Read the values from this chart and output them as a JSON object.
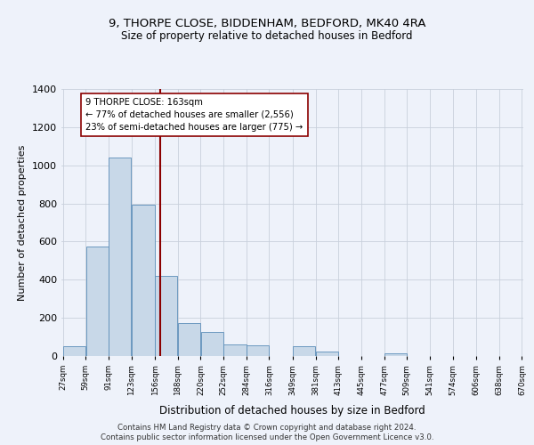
{
  "title1": "9, THORPE CLOSE, BIDDENHAM, BEDFORD, MK40 4RA",
  "title2": "Size of property relative to detached houses in Bedford",
  "xlabel": "Distribution of detached houses by size in Bedford",
  "ylabel": "Number of detached properties",
  "bar_left_edges": [
    27,
    59,
    91,
    123,
    156,
    188,
    220,
    252,
    284,
    316,
    349,
    381,
    413,
    445,
    477,
    509,
    541,
    574,
    606,
    638
  ],
  "bar_widths": [
    32,
    32,
    32,
    33,
    32,
    32,
    32,
    32,
    32,
    33,
    32,
    32,
    32,
    32,
    32,
    32,
    33,
    32,
    32,
    32
  ],
  "bar_heights": [
    50,
    575,
    1040,
    795,
    420,
    175,
    125,
    62,
    55,
    0,
    50,
    25,
    0,
    0,
    15,
    0,
    0,
    0,
    0,
    0
  ],
  "bar_color": "#c8d8e8",
  "bar_edge_color": "#5b8db8",
  "tick_labels": [
    "27sqm",
    "59sqm",
    "91sqm",
    "123sqm",
    "156sqm",
    "188sqm",
    "220sqm",
    "252sqm",
    "284sqm",
    "316sqm",
    "349sqm",
    "381sqm",
    "413sqm",
    "445sqm",
    "477sqm",
    "509sqm",
    "541sqm",
    "574sqm",
    "606sqm",
    "638sqm",
    "670sqm"
  ],
  "ylim": [
    0,
    1400
  ],
  "yticks": [
    0,
    200,
    400,
    600,
    800,
    1000,
    1200,
    1400
  ],
  "vline_x": 163,
  "vline_color": "#8b0000",
  "annotation_text": "9 THORPE CLOSE: 163sqm\n← 77% of detached houses are smaller (2,556)\n23% of semi-detached houses are larger (775) →",
  "annotation_box_color": "#ffffff",
  "annotation_box_edge": "#8b0000",
  "footnote1": "Contains HM Land Registry data © Crown copyright and database right 2024.",
  "footnote2": "Contains public sector information licensed under the Open Government Licence v3.0.",
  "background_color": "#eef2fa",
  "grid_color": "#c8d0dc"
}
